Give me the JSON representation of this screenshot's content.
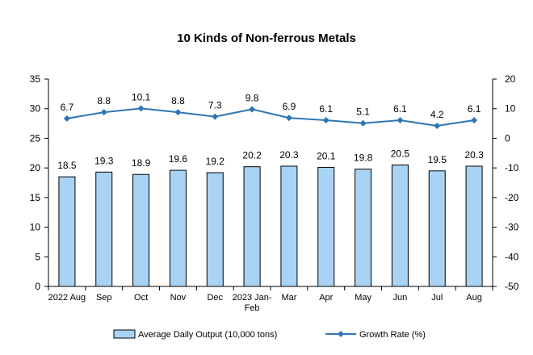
{
  "chart_data": {
    "type": "bar",
    "title": "10 Kinds of Non-ferrous Metals",
    "categories": [
      [
        "2022 Aug"
      ],
      [
        "Sep"
      ],
      [
        "Oct"
      ],
      [
        "Nov"
      ],
      [
        "Dec"
      ],
      [
        "2023 Jan-",
        "Feb"
      ],
      [
        "Mar"
      ],
      [
        "Apr"
      ],
      [
        "May"
      ],
      [
        "Jun"
      ],
      [
        "Jul"
      ],
      [
        "Aug"
      ]
    ],
    "series": [
      {
        "name": "Average Daily Output (10,000 tons)",
        "type": "bar",
        "axis": "left",
        "color": "#a9d3f5",
        "values": [
          18.5,
          19.3,
          18.9,
          19.6,
          19.2,
          20.2,
          20.3,
          20.1,
          19.8,
          20.5,
          19.5,
          20.3
        ]
      },
      {
        "name": "Growth Rate (%)",
        "type": "line",
        "axis": "right",
        "color": "#2e75b6",
        "values": [
          6.7,
          8.8,
          10.1,
          8.8,
          7.3,
          9.8,
          6.9,
          6.1,
          5.1,
          6.1,
          4.2,
          6.1
        ]
      }
    ],
    "left_axis": {
      "ylim": [
        0,
        35
      ],
      "ticks": [
        0,
        5,
        10,
        15,
        20,
        25,
        30,
        35
      ]
    },
    "right_axis": {
      "ylim": [
        -50,
        20
      ],
      "ticks": [
        -50,
        -40,
        -30,
        -20,
        -10,
        0,
        10,
        20
      ]
    },
    "legend_position": "bottom",
    "grid": false
  }
}
